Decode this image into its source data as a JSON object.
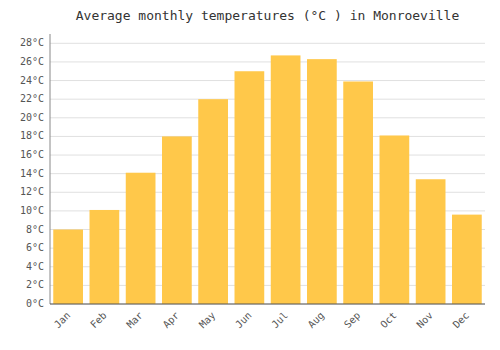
{
  "chart_data": {
    "type": "bar",
    "title": "Average monthly temperatures (°C ) in Monroeville",
    "categories": [
      "Jan",
      "Feb",
      "Mar",
      "Apr",
      "May",
      "Jun",
      "Jul",
      "Aug",
      "Sep",
      "Oct",
      "Nov",
      "Dec"
    ],
    "values": [
      8.0,
      10.1,
      14.1,
      18.0,
      22.0,
      25.0,
      26.7,
      26.3,
      23.9,
      18.1,
      13.4,
      9.6
    ],
    "color": "#FFC84A",
    "ylim": [
      0,
      29
    ],
    "yticks": [
      {
        "value": 0,
        "label": "0°C"
      },
      {
        "value": 2,
        "label": "2°C"
      },
      {
        "value": 4,
        "label": "4°C"
      },
      {
        "value": 6,
        "label": "6°C"
      },
      {
        "value": 8,
        "label": "8°C"
      },
      {
        "value": 10,
        "label": "10°C"
      },
      {
        "value": 12,
        "label": "12°C"
      },
      {
        "value": 14,
        "label": "14°C"
      },
      {
        "value": 16,
        "label": "16°C"
      },
      {
        "value": 18,
        "label": "18°C"
      },
      {
        "value": 20,
        "label": "20°C"
      },
      {
        "value": 22,
        "label": "22°C"
      },
      {
        "value": 24,
        "label": "24°C"
      },
      {
        "value": 26,
        "label": "26°C"
      },
      {
        "value": 28,
        "label": "28°C"
      }
    ],
    "grid": true
  }
}
